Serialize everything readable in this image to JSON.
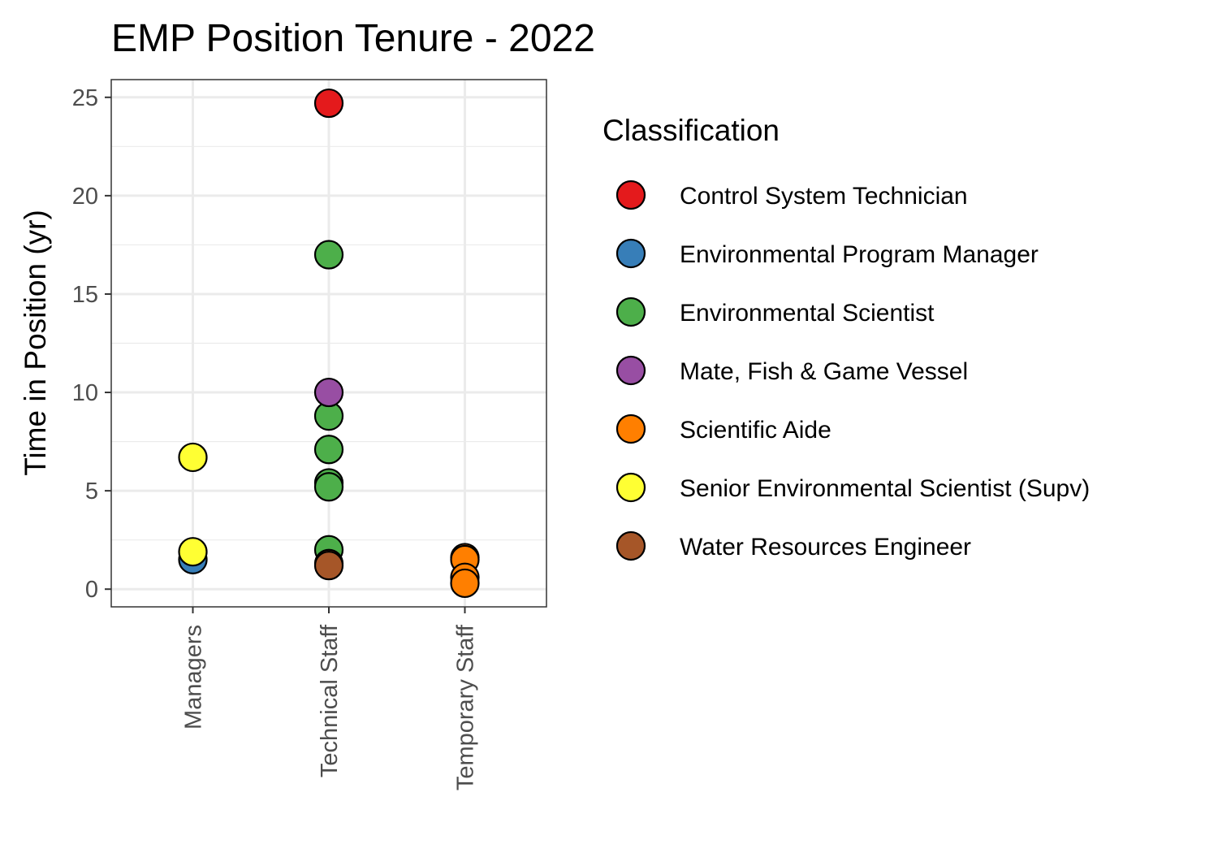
{
  "chart_data": {
    "type": "scatter",
    "title": "EMP Position Tenure - 2022",
    "xlabel": "",
    "ylabel": "Time in Position (yr)",
    "categories": [
      "Managers",
      "Technical Staff",
      "Temporary Staff"
    ],
    "ylim": [
      -0.9,
      25.9
    ],
    "yticks": [
      0,
      5,
      10,
      15,
      20,
      25
    ],
    "grid": true,
    "legend": {
      "title": "Classification",
      "placement": "right",
      "entries": [
        {
          "label": "Control System Technician",
          "color": "#e41a1c"
        },
        {
          "label": "Environmental Program Manager",
          "color": "#377eb8"
        },
        {
          "label": "Environmental Scientist",
          "color": "#4daf4a"
        },
        {
          "label": "Mate, Fish & Game Vessel",
          "color": "#984ea3"
        },
        {
          "label": "Scientific Aide",
          "color": "#ff7f00"
        },
        {
          "label": "Senior Environmental Scientist (Supv)",
          "color": "#ffff33"
        },
        {
          "label": "Water Resources Engineer",
          "color": "#a65628"
        }
      ]
    },
    "points": [
      {
        "x": "Managers",
        "y": 1.5,
        "series": "Environmental Program Manager"
      },
      {
        "x": "Managers",
        "y": 6.7,
        "series": "Senior Environmental Scientist (Supv)"
      },
      {
        "x": "Managers",
        "y": 1.9,
        "series": "Senior Environmental Scientist (Supv)"
      },
      {
        "x": "Technical Staff",
        "y": 24.7,
        "series": "Control System Technician"
      },
      {
        "x": "Technical Staff",
        "y": 17.0,
        "series": "Environmental Scientist"
      },
      {
        "x": "Technical Staff",
        "y": 8.8,
        "series": "Environmental Scientist"
      },
      {
        "x": "Technical Staff",
        "y": 7.1,
        "series": "Environmental Scientist"
      },
      {
        "x": "Technical Staff",
        "y": 5.4,
        "series": "Environmental Scientist"
      },
      {
        "x": "Technical Staff",
        "y": 5.2,
        "series": "Environmental Scientist"
      },
      {
        "x": "Technical Staff",
        "y": 2.0,
        "series": "Environmental Scientist"
      },
      {
        "x": "Technical Staff",
        "y": 10.0,
        "series": "Mate, Fish & Game Vessel"
      },
      {
        "x": "Technical Staff",
        "y": 1.3,
        "series": "Water Resources Engineer"
      },
      {
        "x": "Technical Staff",
        "y": 1.2,
        "series": "Water Resources Engineer"
      },
      {
        "x": "Temporary Staff",
        "y": 1.6,
        "series": "Scientific Aide"
      },
      {
        "x": "Temporary Staff",
        "y": 1.5,
        "series": "Scientific Aide"
      },
      {
        "x": "Temporary Staff",
        "y": 0.6,
        "series": "Scientific Aide"
      },
      {
        "x": "Temporary Staff",
        "y": 0.3,
        "series": "Scientific Aide"
      }
    ]
  }
}
